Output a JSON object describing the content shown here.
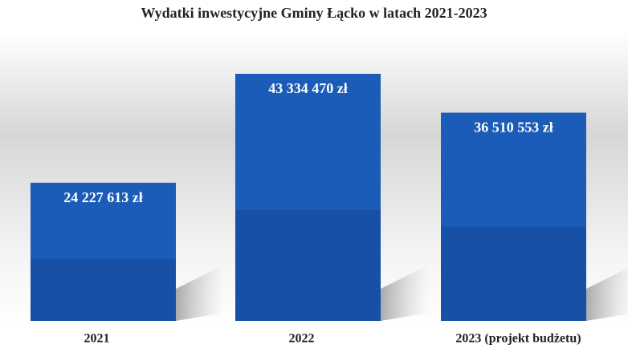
{
  "chart_data": {
    "type": "bar",
    "title": "Wydatki inwestycyjne Gminy Łącko w latach 2021-2023",
    "categories": [
      "2021",
      "2022",
      "2023 (projekt budżetu)"
    ],
    "values": [
      24227613,
      43334470,
      36510553
    ],
    "value_labels": [
      "24 227 613 zł",
      "43 334 470 zł",
      "36 510 553 zł"
    ],
    "color": "#1b5cb8"
  }
}
